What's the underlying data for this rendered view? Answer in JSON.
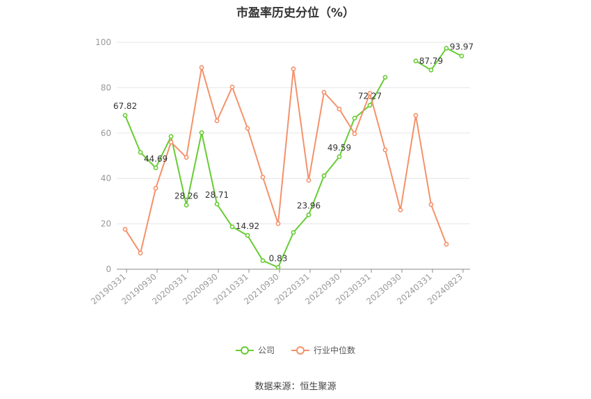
{
  "title": "市盈率历史分位（%）",
  "source": "数据来源：恒生聚源",
  "colors": {
    "company": "#66cc33",
    "industry": "#f4916a",
    "grid": "#e6e6e6",
    "axis": "#999999",
    "label": "#333333"
  },
  "chart_data": {
    "type": "line",
    "title": "市盈率历史分位（%）",
    "ylim": [
      0,
      100
    ],
    "yticks": [
      0,
      20,
      40,
      60,
      80,
      100
    ],
    "grid": "horizontal",
    "legend_position": "bottom-center",
    "tick_labels": [
      "20190331",
      "20190930",
      "20200331",
      "20200930",
      "20210331",
      "20210930",
      "20220331",
      "20220930",
      "20230331",
      "20230930",
      "20240331",
      "20240823"
    ],
    "series": [
      {
        "name": "公司",
        "color": "#66cc33",
        "values": [
          67.82,
          51.5,
          44.69,
          58.5,
          28.26,
          60.2,
          28.71,
          18.7,
          14.92,
          3.8,
          0.83,
          16.2,
          23.96,
          41.2,
          49.59,
          66.6,
          72.27,
          84.6,
          null,
          91.8,
          87.79,
          97.4,
          93.97
        ],
        "labels": {
          "0": "67.82",
          "2": "44.69",
          "4": "28.26",
          "6": "28.71",
          "8": "14.92",
          "10": "0.83",
          "12": "23.96",
          "14": "49.59",
          "16": "72.27",
          "20": "87.79",
          "22": "93.97"
        }
      },
      {
        "name": "行业中位数",
        "color": "#f4916a",
        "values": [
          17.6,
          7.1,
          35.7,
          56.0,
          49.3,
          88.9,
          65.4,
          80.3,
          62.1,
          40.6,
          20.1,
          88.3,
          39.2,
          78.0,
          70.6,
          59.7,
          77.5,
          52.6,
          26.1,
          67.8,
          28.5,
          11.0,
          null
        ]
      }
    ]
  }
}
